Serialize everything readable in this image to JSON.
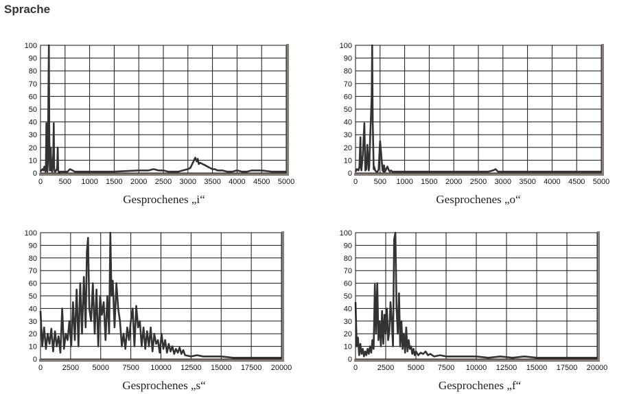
{
  "page": {
    "title": "Sprache"
  },
  "chart_data": [
    {
      "type": "line",
      "title": "Gesprochenes „i“",
      "xlim": [
        0,
        5000
      ],
      "ylim": [
        0,
        100
      ],
      "xticks": [
        "0",
        "500",
        "1000",
        "1500",
        "2000",
        "2500",
        "3000",
        "3500",
        "4000",
        "4500",
        "5000"
      ],
      "yticks": [
        "0",
        "10",
        "20",
        "30",
        "40",
        "50",
        "60",
        "70",
        "80",
        "90",
        "100"
      ],
      "grid": true,
      "series_color": "#333333",
      "series": [
        {
          "x": [
            0,
            40,
            60,
            80,
            100,
            110,
            120,
            130,
            140,
            150,
            160,
            170,
            180,
            190,
            200,
            210,
            220,
            240,
            260,
            270,
            280,
            290,
            300,
            320,
            340,
            350,
            360,
            370,
            380,
            400,
            450,
            500,
            550,
            600,
            700,
            800,
            1000,
            1500,
            2000,
            2100,
            2200,
            2300,
            2400,
            2500,
            2600,
            2700,
            2800,
            2900,
            3000,
            3050,
            3100,
            3150,
            3180,
            3200,
            3220,
            3250,
            3300,
            3350,
            3400,
            3450,
            3500,
            3550,
            3600,
            3700,
            3800,
            3900,
            4000,
            4100,
            4200,
            4300,
            4400,
            4500,
            4700,
            4900,
            5000
          ],
          "y": [
            1,
            3,
            2,
            5,
            1,
            6,
            39,
            4,
            1,
            8,
            60,
            100,
            30,
            2,
            6,
            20,
            2,
            1,
            15,
            39,
            3,
            1,
            1,
            2,
            4,
            20,
            2,
            1,
            0,
            1,
            1,
            1,
            1,
            3,
            1,
            1,
            1,
            1,
            2,
            2,
            2,
            3,
            2,
            2,
            1,
            1,
            1,
            2,
            3,
            4,
            8,
            12,
            9,
            11,
            7,
            8,
            7,
            6,
            5,
            4,
            3,
            3,
            2,
            2,
            1,
            1,
            2,
            1,
            1,
            2,
            2,
            2,
            1,
            1,
            1
          ]
        }
      ]
    },
    {
      "type": "line",
      "title": "Gesprochenes „o“",
      "xlim": [
        0,
        5000
      ],
      "ylim": [
        0,
        100
      ],
      "xticks": [
        "0",
        "500",
        "1000",
        "1500",
        "2000",
        "2500",
        "3000",
        "3500",
        "4000",
        "4500",
        "5000"
      ],
      "yticks": [
        "0",
        "10",
        "20",
        "30",
        "40",
        "50",
        "60",
        "70",
        "80",
        "90",
        "100"
      ],
      "grid": true,
      "series_color": "#333333",
      "series": [
        {
          "x": [
            0,
            30,
            60,
            80,
            100,
            110,
            120,
            150,
            180,
            200,
            220,
            240,
            270,
            280,
            300,
            330,
            340,
            350,
            370,
            380,
            400,
            420,
            450,
            470,
            500,
            550,
            570,
            580,
            600,
            650,
            680,
            700,
            720,
            750,
            800,
            900,
            1000,
            1500,
            2000,
            2500,
            2700,
            2800,
            2850,
            2900,
            3000,
            3500,
            4000,
            4500,
            5000
          ],
          "y": [
            1,
            3,
            2,
            5,
            28,
            4,
            2,
            15,
            39,
            2,
            3,
            22,
            2,
            5,
            30,
            60,
            100,
            40,
            3,
            5,
            2,
            1,
            1,
            3,
            25,
            2,
            1,
            6,
            1,
            5,
            2,
            1,
            2,
            1,
            1,
            1,
            1,
            1,
            1,
            1,
            1,
            2,
            3,
            1,
            1,
            1,
            1,
            1,
            1
          ]
        }
      ]
    },
    {
      "type": "line",
      "title": "Gesprochenes „s“",
      "xlim": [
        0,
        20000
      ],
      "ylim": [
        0,
        100
      ],
      "xticks": [
        "0",
        "2500",
        "5000",
        "7500",
        "10000",
        "12500",
        "15000",
        "17500",
        "20000"
      ],
      "yticks": [
        "0",
        "10",
        "20",
        "30",
        "40",
        "50",
        "60",
        "70",
        "80",
        "90",
        "100"
      ],
      "grid": true,
      "series_color": "#333333",
      "series": [
        {
          "x": [
            0,
            150,
            300,
            450,
            600,
            750,
            900,
            1050,
            1200,
            1350,
            1500,
            1650,
            1800,
            1950,
            2100,
            2250,
            2400,
            2550,
            2700,
            2850,
            3000,
            3150,
            3300,
            3450,
            3600,
            3750,
            3850,
            3950,
            4050,
            4200,
            4350,
            4500,
            4650,
            4800,
            4950,
            5100,
            5250,
            5400,
            5550,
            5700,
            5800,
            5900,
            6000,
            6150,
            6300,
            6450,
            6600,
            6750,
            6900,
            7050,
            7200,
            7350,
            7500,
            7650,
            7800,
            7950,
            8100,
            8250,
            8400,
            8550,
            8700,
            8850,
            9000,
            9150,
            9300,
            9450,
            9600,
            9750,
            9900,
            10050,
            10200,
            10350,
            10500,
            10650,
            10800,
            10950,
            11100,
            11250,
            11400,
            11550,
            11700,
            11850,
            12000,
            12500,
            13000,
            13500,
            14000,
            15000,
            16000,
            17000,
            18000,
            19000,
            20000
          ],
          "y": [
            38,
            10,
            25,
            8,
            20,
            12,
            24,
            6,
            22,
            10,
            18,
            5,
            40,
            8,
            20,
            15,
            30,
            10,
            45,
            15,
            55,
            10,
            60,
            20,
            65,
            25,
            85,
            96,
            40,
            30,
            60,
            20,
            55,
            10,
            50,
            35,
            45,
            15,
            50,
            20,
            100,
            50,
            62,
            25,
            60,
            40,
            30,
            10,
            20,
            8,
            25,
            15,
            30,
            40,
            10,
            42,
            25,
            30,
            10,
            25,
            8,
            22,
            10,
            25,
            6,
            20,
            12,
            15,
            5,
            20,
            8,
            15,
            5,
            12,
            6,
            10,
            4,
            8,
            5,
            9,
            4,
            7,
            3,
            2,
            3,
            2,
            2,
            2,
            1,
            1,
            1,
            1,
            1
          ]
        }
      ]
    },
    {
      "type": "line",
      "title": "Gesprochenes „f“",
      "xlim": [
        0,
        20000
      ],
      "ylim": [
        0,
        100
      ],
      "xticks": [
        "0",
        "2500",
        "5000",
        "7500",
        "10000",
        "12500",
        "15000",
        "17500",
        "20000"
      ],
      "yticks": [
        "0",
        "10",
        "20",
        "30",
        "40",
        "50",
        "60",
        "70",
        "80",
        "90",
        "100"
      ],
      "grid": true,
      "series_color": "#333333",
      "series": [
        {
          "x": [
            0,
            100,
            200,
            300,
            400,
            500,
            600,
            700,
            800,
            900,
            1000,
            1100,
            1200,
            1300,
            1400,
            1500,
            1600,
            1700,
            1800,
            1900,
            2000,
            2100,
            2200,
            2300,
            2400,
            2500,
            2600,
            2700,
            2800,
            2900,
            3000,
            3100,
            3200,
            3300,
            3400,
            3500,
            3600,
            3700,
            3800,
            3900,
            4000,
            4100,
            4200,
            4300,
            4400,
            4500,
            4600,
            4700,
            4800,
            4900,
            5000,
            5200,
            5400,
            5600,
            5800,
            6000,
            6200,
            6500,
            7000,
            7500,
            8000,
            9000,
            10000,
            11000,
            12000,
            13000,
            14000,
            15000,
            16000,
            17000,
            18000,
            19000,
            20000
          ],
          "y": [
            45,
            10,
            17,
            3,
            12,
            4,
            8,
            2,
            6,
            3,
            8,
            4,
            10,
            5,
            15,
            8,
            59,
            20,
            60,
            15,
            30,
            10,
            38,
            12,
            35,
            20,
            40,
            15,
            22,
            45,
            30,
            10,
            95,
            100,
            40,
            20,
            52,
            10,
            30,
            8,
            20,
            5,
            25,
            6,
            15,
            8,
            10,
            4,
            8,
            3,
            6,
            3,
            5,
            4,
            6,
            3,
            4,
            2,
            3,
            2,
            2,
            2,
            2,
            1,
            2,
            1,
            2,
            1,
            1,
            1,
            1,
            1,
            1
          ]
        }
      ]
    }
  ]
}
